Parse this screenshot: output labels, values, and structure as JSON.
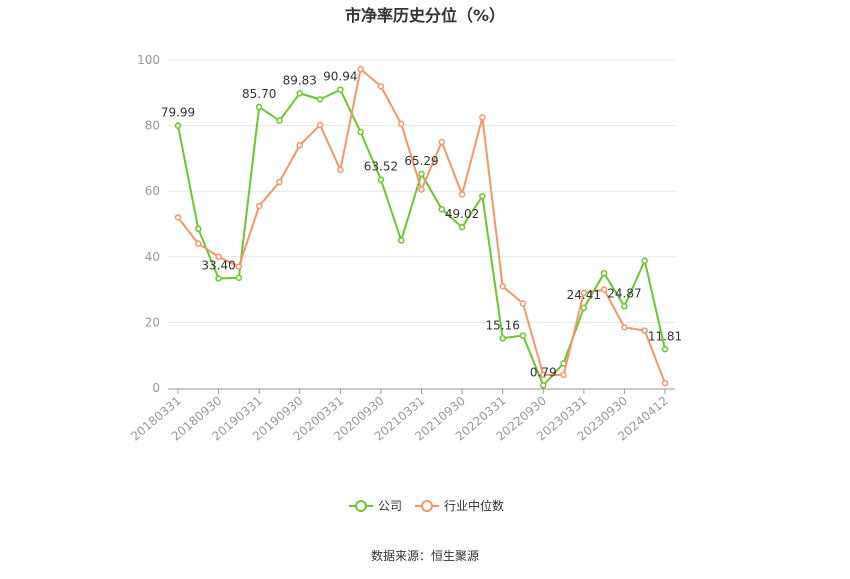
{
  "chart_data": {
    "type": "line",
    "title": "市净率历史分位（%）",
    "source": "数据来源：恒生聚源",
    "ylim": [
      0,
      100
    ],
    "yticks": [
      0,
      20,
      40,
      60,
      80,
      100
    ],
    "x_tick_labels": [
      "20180331",
      "20180930",
      "20190331",
      "20190930",
      "20200331",
      "20200930",
      "20210331",
      "20210930",
      "20220331",
      "20220930",
      "20230331",
      "20230930",
      "20240412"
    ],
    "x": [
      "20180331",
      "20180630",
      "20180930",
      "20181231",
      "20190331",
      "20190630",
      "20190930",
      "20191231",
      "20200331",
      "20200630",
      "20200930",
      "20201231",
      "20210331",
      "20210630",
      "20210930",
      "20211231",
      "20220331",
      "20220630",
      "20220930",
      "20221231",
      "20230331",
      "20230630",
      "20230930",
      "20231231",
      "20240412"
    ],
    "series": [
      {
        "name": "公司",
        "color": "#6cc72c",
        "values": [
          79.99,
          48.5,
          33.4,
          33.6,
          85.7,
          81.5,
          89.83,
          88.0,
          90.94,
          78.0,
          63.52,
          45.0,
          65.29,
          54.5,
          49.02,
          58.5,
          15.16,
          16.0,
          0.79,
          7.5,
          24.41,
          35.0,
          24.87,
          38.8,
          11.81
        ],
        "labels": [
          "79.99",
          "",
          "33.40",
          "",
          "85.70",
          "",
          "89.83",
          "",
          "90.94",
          "",
          "63.52",
          "",
          "65.29",
          "",
          "49.02",
          "",
          "15.16",
          "",
          "0.79",
          "",
          "24.41",
          "",
          "24.87",
          "",
          "11.81"
        ]
      },
      {
        "name": "行业中位数",
        "color": "#f5966a",
        "values": [
          52.0,
          44.0,
          40.0,
          37.0,
          55.5,
          62.8,
          74.0,
          80.2,
          66.5,
          97.2,
          92.0,
          80.5,
          60.5,
          75.0,
          59.0,
          82.5,
          31.0,
          25.8,
          4.0,
          4.0,
          29.0,
          30.0,
          18.5,
          17.5,
          1.5
        ]
      }
    ],
    "legend_position": "bottom-center",
    "grid": true
  }
}
